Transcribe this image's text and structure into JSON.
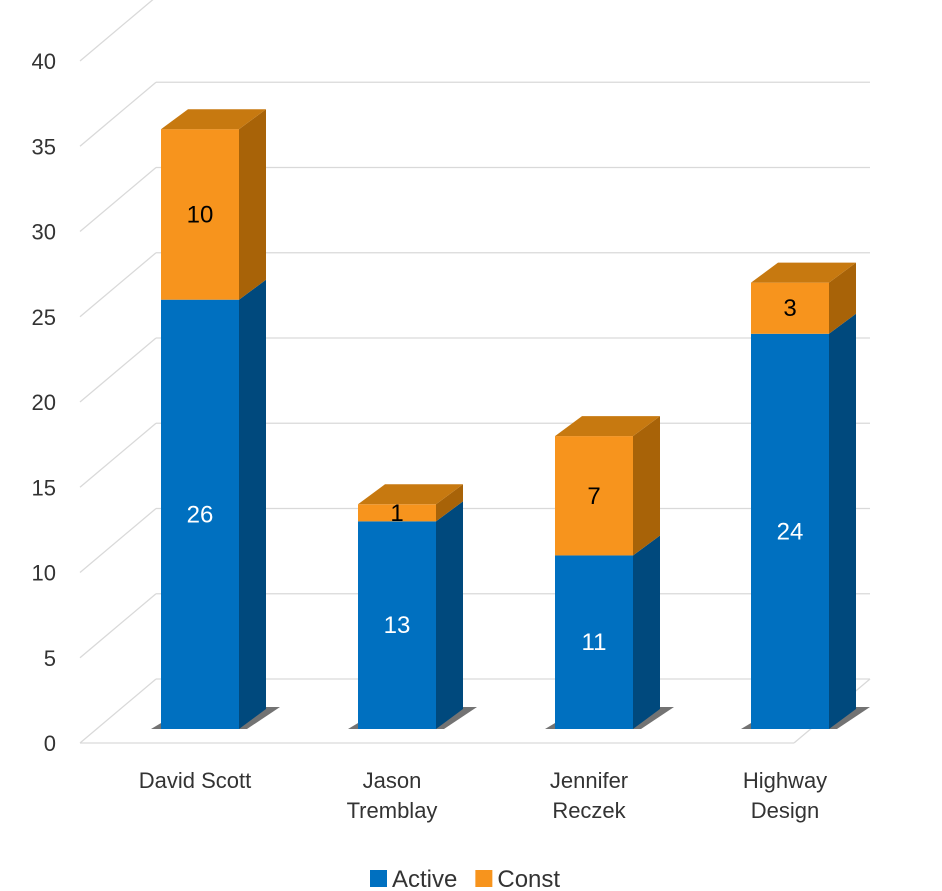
{
  "chart_data": {
    "type": "bar",
    "stacked": true,
    "three_d": true,
    "categories": [
      "David Scott",
      "Jason Tremblay",
      "Jennifer Reczek",
      "Highway Design"
    ],
    "category_lines": [
      [
        "David Scott"
      ],
      [
        "Jason",
        "Tremblay"
      ],
      [
        "Jennifer",
        "Reczek"
      ],
      [
        "Highway",
        "Design"
      ]
    ],
    "series": [
      {
        "name": "Active",
        "values": [
          26,
          13,
          11,
          24
        ],
        "color": "#0070C0",
        "side_color": "#00497D",
        "top_color": "#2E86CC",
        "label_color": "#ffffff"
      },
      {
        "name": "Const",
        "values": [
          10,
          1,
          7,
          3
        ],
        "color": "#F7941D",
        "side_color": "#A86308",
        "top_color": "#C77910",
        "label_color": "#000000"
      }
    ],
    "yticks": [
      "0",
      "5",
      "10",
      "15",
      "20",
      "25",
      "30",
      "35",
      "40"
    ],
    "ylim": [
      0,
      40
    ],
    "grid": true,
    "legend": "bottom",
    "title": "",
    "xlabel": "",
    "ylabel": ""
  }
}
